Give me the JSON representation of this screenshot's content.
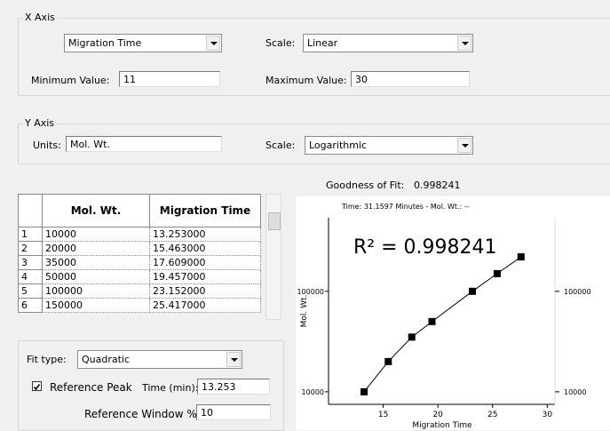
{
  "x_axis": {
    "title": "X Axis",
    "variable": "Migration Time",
    "scale_label": "Scale:",
    "scale": "Linear",
    "min_label": "Minimum Value:",
    "min": "11",
    "max_label": "Maximum Value:",
    "max": "30"
  },
  "y_axis": {
    "title": "Y Axis",
    "units_label": "Units:",
    "units": "Mol. Wt.",
    "scale_label": "Scale:",
    "scale": "Logarithmic"
  },
  "goodness_label": "Goodness of Fit:",
  "goodness": "0.998241",
  "table": {
    "columns": [
      "Mol. Wt.",
      "Migration Time"
    ],
    "rows": [
      [
        "1",
        "10000",
        "13.253000"
      ],
      [
        "2",
        "20000",
        "15.463000"
      ],
      [
        "3",
        "35000",
        "17.609000"
      ],
      [
        "4",
        "50000",
        "19.457000"
      ],
      [
        "5",
        "100000",
        "23.152000"
      ],
      [
        "6",
        "150000",
        "25.417000"
      ]
    ]
  },
  "fit": {
    "type_label": "Fit type:",
    "type": "Quadratic",
    "reference_peak": "Reference Peak",
    "checked": true,
    "time_label": "Time (min):",
    "time": "13.253",
    "window_label": "Reference Window %:",
    "window": "10"
  },
  "chart_data": {
    "type": "line",
    "header": "Time: 31.1597 Minutes - Mol. Wt.: --",
    "annotation": "R² = 0.998241",
    "x_label": "Migration Time",
    "y_label": "Mol. Wt.",
    "x": [
      13.253,
      15.463,
      17.609,
      19.457,
      23.152,
      25.417,
      27.6
    ],
    "values": [
      10000,
      20000,
      35000,
      50000,
      100000,
      150000,
      220000
    ],
    "color": "#000000",
    "log_y": true,
    "xlim": [
      10,
      30.7
    ],
    "ylim": [
      7500,
      540000
    ],
    "xticks": [
      15,
      20,
      25,
      30
    ],
    "yticks": [
      10000,
      100000
    ],
    "right_axis_ticks": true
  }
}
